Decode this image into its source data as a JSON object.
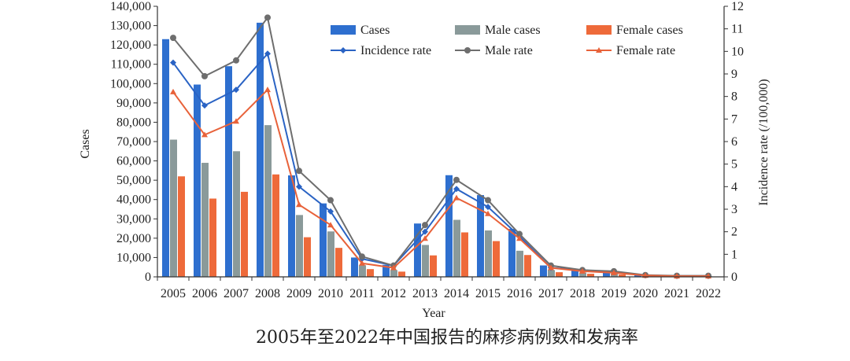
{
  "chart_data": {
    "type": "bar",
    "caption": "2005年至2022年中国报告的麻疹病例数和发病率",
    "xlabel": "Year",
    "ylabel": "Cases",
    "y2label": "Incidence rate (/100,000)",
    "ylim": [
      0,
      140000
    ],
    "y2lim": [
      0,
      12
    ],
    "yticks": [
      "0",
      "10,000",
      "20,000",
      "30,000",
      "40,000",
      "50,000",
      "60,000",
      "70,000",
      "80,000",
      "90,000",
      "100,000",
      "110,000",
      "120,000",
      "130,000",
      "140,000"
    ],
    "y2ticks": [
      "0",
      "1",
      "2",
      "3",
      "4",
      "5",
      "6",
      "7",
      "8",
      "9",
      "10",
      "11",
      "12"
    ],
    "categories": [
      "2005",
      "2006",
      "2007",
      "2008",
      "2009",
      "2010",
      "2011",
      "2012",
      "2013",
      "2014",
      "2015",
      "2016",
      "2017",
      "2018",
      "2019",
      "2020",
      "2021",
      "2022"
    ],
    "legend_position": "top-center",
    "bar_series": [
      {
        "name": "Cases",
        "color": "#2e6fcf",
        "values": [
          123000,
          99500,
          109000,
          131500,
          52500,
          38000,
          10000,
          6200,
          27600,
          52600,
          42300,
          24800,
          5900,
          3900,
          2900,
          1000,
          500,
          500
        ]
      },
      {
        "name": "Male cases",
        "color": "#8a9a9a",
        "values": [
          71000,
          59000,
          65000,
          78500,
          32000,
          23500,
          6000,
          3500,
          16500,
          29500,
          24000,
          13500,
          3500,
          2300,
          1700,
          600,
          300,
          300
        ]
      },
      {
        "name": "Female cases",
        "color": "#ee6a3a",
        "values": [
          52000,
          40500,
          44000,
          53000,
          20500,
          15000,
          4000,
          2700,
          11100,
          23000,
          18500,
          11300,
          2400,
          1600,
          1200,
          400,
          200,
          200
        ]
      }
    ],
    "line_series": [
      {
        "name": "Incidence rate",
        "color": "#2a63c4",
        "marker": "diamond",
        "values": [
          9.5,
          7.6,
          8.3,
          9.9,
          4.0,
          2.9,
          0.8,
          0.5,
          2.0,
          3.9,
          3.1,
          1.8,
          0.4,
          0.3,
          0.2,
          0.07,
          0.04,
          0.04
        ]
      },
      {
        "name": "Male rate",
        "color": "#6e6e6e",
        "marker": "circle",
        "values": [
          10.6,
          8.9,
          9.6,
          11.5,
          4.7,
          3.4,
          0.9,
          0.5,
          2.3,
          4.3,
          3.4,
          1.9,
          0.5,
          0.3,
          0.25,
          0.08,
          0.05,
          0.05
        ]
      },
      {
        "name": "Female rate",
        "color": "#e8623a",
        "marker": "triangle",
        "values": [
          8.2,
          6.3,
          6.9,
          8.3,
          3.2,
          2.3,
          0.6,
          0.4,
          1.7,
          3.5,
          2.8,
          1.7,
          0.4,
          0.25,
          0.18,
          0.06,
          0.03,
          0.03
        ]
      }
    ]
  }
}
